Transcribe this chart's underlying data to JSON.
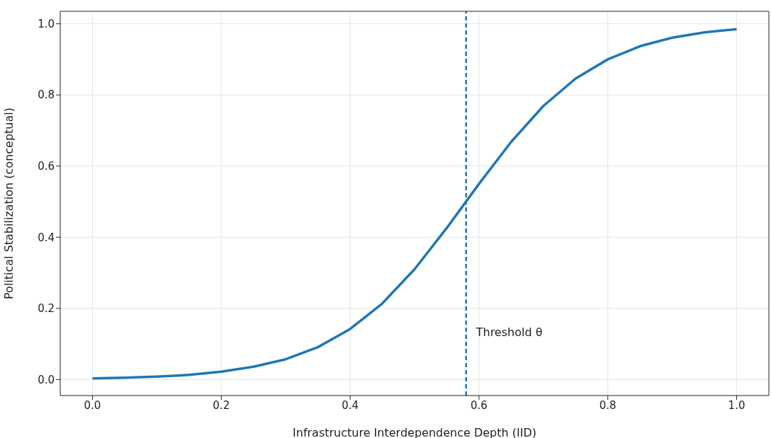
{
  "chart_data": {
    "type": "line",
    "xlabel": "Infrastructure Interdependence Depth (IID)",
    "ylabel": "Political Stabilization (conceptual)",
    "x": [
      0,
      0.05,
      0.1,
      0.15,
      0.2,
      0.25,
      0.3,
      0.35,
      0.4,
      0.45,
      0.5,
      0.55,
      0.6,
      0.65,
      0.7,
      0.75,
      0.8,
      0.85,
      0.9,
      0.95,
      1.0
    ],
    "series": [
      {
        "color": "#1f77b4",
        "values": [
          0.003,
          0.005,
          0.008,
          0.013,
          0.022,
          0.036,
          0.057,
          0.091,
          0.142,
          0.214,
          0.31,
          0.426,
          0.55,
          0.668,
          0.769,
          0.846,
          0.9,
          0.937,
          0.961,
          0.976,
          0.985
        ]
      }
    ],
    "xlim": [
      -0.05,
      1.05
    ],
    "xticks": [
      {
        "value": 0,
        "label": "0.0"
      },
      {
        "value": 0.2,
        "label": "0.2"
      },
      {
        "value": 0.4,
        "label": "0.4"
      },
      {
        "value": 0.6,
        "label": "0.6"
      },
      {
        "value": 0.8,
        "label": "0.8"
      },
      {
        "value": 1,
        "label": "1.0"
      }
    ],
    "ylim": [
      -0.045,
      1.035
    ],
    "yticks": [
      {
        "value": 0,
        "label": "0.0"
      },
      {
        "value": 0.2,
        "label": "0.2"
      },
      {
        "value": 0.4,
        "label": "0.4"
      },
      {
        "value": 0.6,
        "label": "0.6"
      },
      {
        "value": 0.8,
        "label": "0.8"
      },
      {
        "value": 1,
        "label": "1.0"
      }
    ],
    "grid": true,
    "marker": "none",
    "line_style": "solid",
    "ref_lines": [
      {
        "axis": "x",
        "value": 0.58,
        "label": "Threshold θ",
        "color": "#1f77b4",
        "line_style": "dashed"
      }
    ]
  }
}
